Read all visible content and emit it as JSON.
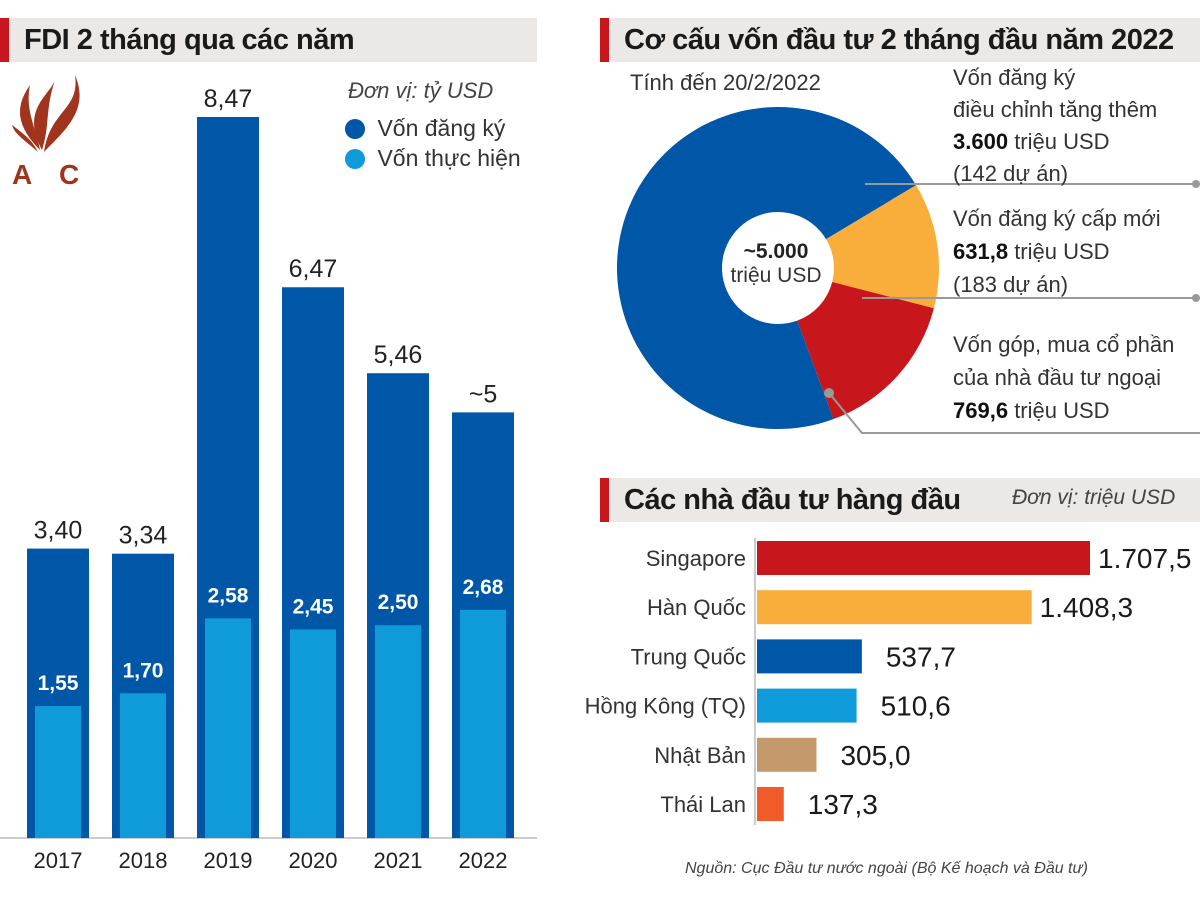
{
  "logo": {
    "text": "ACC",
    "color": "#a0341c"
  },
  "chart_data": [
    {
      "type": "bar",
      "title": "FDI 2 tháng qua các năm",
      "unit": "Đơn vị: tỷ USD",
      "categories": [
        "2017",
        "2018",
        "2019",
        "2020",
        "2021",
        "2022"
      ],
      "series": [
        {
          "name": "Vốn đăng ký",
          "color": "#0057a8",
          "values": [
            3.4,
            3.34,
            8.47,
            6.47,
            5.46,
            5.0
          ],
          "labels": [
            "3,40",
            "3,34",
            "8,47",
            "6,47",
            "5,46",
            "~5"
          ]
        },
        {
          "name": "Vốn thực hiện",
          "color": "#0f9ad9",
          "values": [
            1.55,
            1.7,
            2.58,
            2.45,
            2.5,
            2.68
          ],
          "labels": [
            "1,55",
            "1,70",
            "2,58",
            "2,45",
            "2,50",
            "2,68"
          ]
        }
      ],
      "ylim": [
        0,
        8.47
      ],
      "legend": "top-right",
      "grid": false
    },
    {
      "type": "pie",
      "title": "Cơ cấu vốn đầu tư 2 tháng đầu năm 2022",
      "subtitle": "Tính đến 20/2/2022",
      "center_value": "~5.000",
      "center_unit": "triệu USD",
      "slices": [
        {
          "label_lines": [
            "Vốn đăng ký",
            "điều chỉnh tăng thêm"
          ],
          "value": 3600,
          "value_label": "3.600",
          "unit": "triệu USD",
          "note": "(142 dự án)",
          "color": "#0057a8"
        },
        {
          "label_lines": [
            "Vốn đăng ký cấp mới"
          ],
          "value": 631.8,
          "value_label": "631,8",
          "unit": "triệu USD",
          "note": "(183 dự án)",
          "color": "#f9ae3b"
        },
        {
          "label_lines": [
            "Vốn góp, mua cổ phần",
            "của nhà đầu tư ngoại"
          ],
          "value": 769.6,
          "value_label": "769,6",
          "unit": "triệu USD",
          "note": "",
          "color": "#c8161d"
        }
      ]
    },
    {
      "type": "bar",
      "orientation": "horizontal",
      "title": "Các nhà đầu tư hàng đầu",
      "unit": "Đơn vị: triệu USD",
      "categories": [
        "Singapore",
        "Hàn Quốc",
        "Trung Quốc",
        "Hồng Kông (TQ)",
        "Nhật Bản",
        "Thái Lan"
      ],
      "values": [
        1707.5,
        1408.3,
        537.7,
        510.6,
        305.0,
        137.3
      ],
      "labels": [
        "1.707,5",
        "1.408,3",
        "537,7",
        "510,6",
        "305,0",
        "137,3"
      ],
      "colors": [
        "#c8161d",
        "#f9ae3b",
        "#0057a8",
        "#0f9ad9",
        "#c49a6c",
        "#f15a29"
      ]
    }
  ],
  "source": "Nguồn: Cục Đầu tư nước ngoài (Bộ Kế hoạch và Đầu tư)"
}
